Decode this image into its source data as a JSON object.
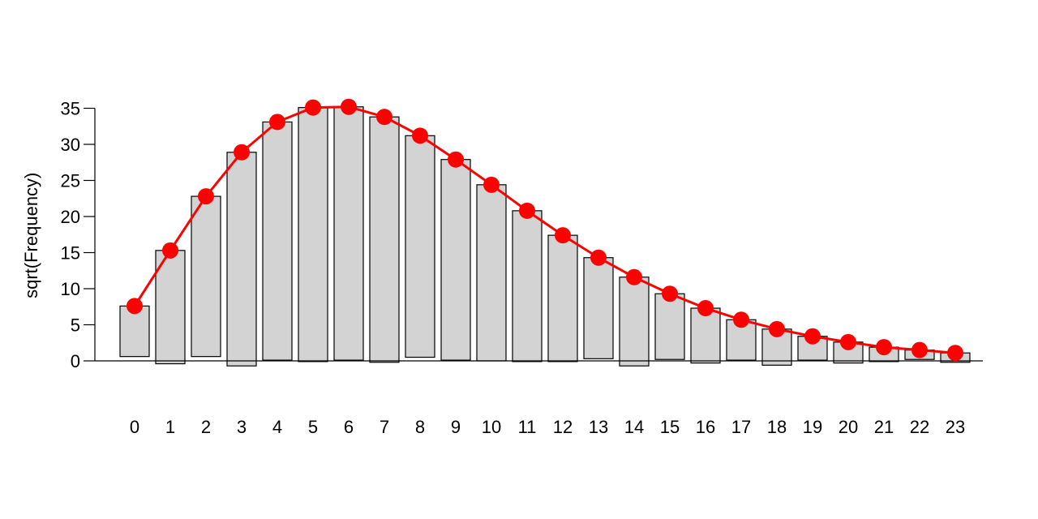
{
  "chart_data": {
    "type": "bar",
    "subtype": "hanging-rootogram",
    "title": "",
    "xlabel": "",
    "ylabel": "sqrt(Frequency)",
    "ylim": [
      0,
      35
    ],
    "yticks": [
      0,
      5,
      10,
      15,
      20,
      25,
      30,
      35
    ],
    "categories": [
      "0",
      "1",
      "2",
      "3",
      "4",
      "5",
      "6",
      "7",
      "8",
      "9",
      "10",
      "11",
      "12",
      "13",
      "14",
      "15",
      "16",
      "17",
      "18",
      "19",
      "20",
      "21",
      "22",
      "23"
    ],
    "series": [
      {
        "kind": "bars",
        "values": [
          7.0,
          15.7,
          22.2,
          29.6,
          33.0,
          35.2,
          35.1,
          34.0,
          30.7,
          27.8,
          24.4,
          20.9,
          17.5,
          14.0,
          12.3,
          9.1,
          7.6,
          5.6,
          5.0,
          3.3,
          2.9,
          2.0,
          1.3,
          1.3
        ],
        "color": "#d3d3d3"
      },
      {
        "kind": "line",
        "values": [
          7.6,
          15.3,
          22.8,
          28.9,
          33.1,
          35.1,
          35.2,
          33.8,
          31.2,
          27.9,
          24.4,
          20.8,
          17.4,
          14.3,
          11.6,
          9.3,
          7.3,
          5.7,
          4.4,
          3.4,
          2.6,
          1.9,
          1.5,
          1.1
        ],
        "color": "#ff0000"
      }
    ],
    "grid": false,
    "legend": "none"
  }
}
